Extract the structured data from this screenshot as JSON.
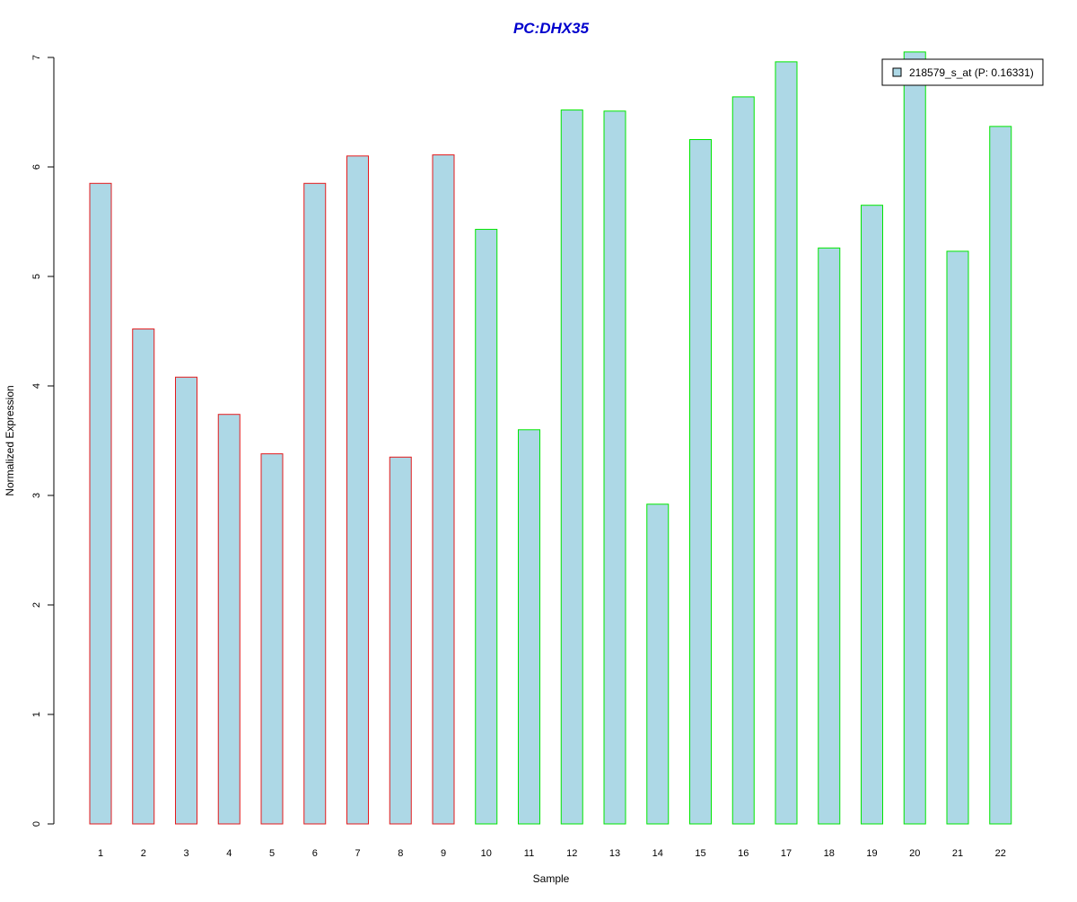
{
  "chart_data": {
    "type": "bar",
    "title": "PC:DHX35",
    "xlabel": "Sample",
    "ylabel": "Normalized Expression",
    "categories": [
      "1",
      "2",
      "3",
      "4",
      "5",
      "6",
      "7",
      "8",
      "9",
      "10",
      "11",
      "12",
      "13",
      "14",
      "15",
      "16",
      "17",
      "18",
      "19",
      "20",
      "21",
      "22"
    ],
    "series": [
      {
        "name": "218579_s_at (P: 0.16331)",
        "values": [
          5.85,
          4.52,
          4.08,
          3.74,
          3.38,
          5.85,
          6.1,
          3.35,
          6.11,
          5.43,
          3.6,
          6.52,
          6.51,
          2.92,
          6.25,
          6.64,
          6.96,
          5.26,
          5.65,
          7.05,
          5.23,
          6.37
        ]
      }
    ],
    "groups": [
      {
        "samples": [
          1,
          9
        ],
        "border_color": "#e31a1c"
      },
      {
        "samples": [
          10,
          22
        ],
        "border_color": "#00e600"
      }
    ],
    "bar_fill": "#add8e6",
    "title_color": "#0000cd",
    "ylim": [
      0,
      7
    ],
    "yticks": [
      0,
      1,
      2,
      3,
      4,
      5,
      6,
      7
    ],
    "grid": false,
    "legend_position": "top-right"
  }
}
